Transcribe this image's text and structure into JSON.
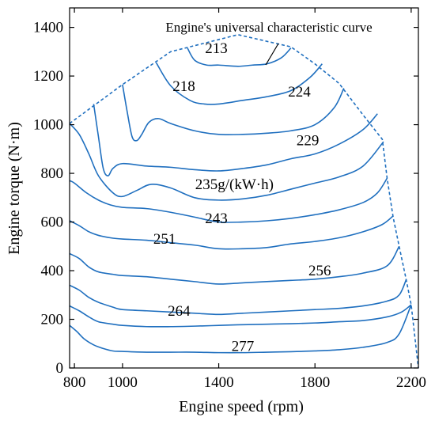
{
  "chart_data": {
    "type": "line",
    "title": "",
    "annotation": "Engine's universal characteristic curve",
    "xlabel": "Engine speed (rpm)",
    "ylabel": "Engine torque   (N·m)",
    "xlim": [
      780,
      2230
    ],
    "ylim": [
      0,
      1480
    ],
    "xticks": [
      800,
      1000,
      1400,
      1800,
      2200
    ],
    "yticks": [
      0,
      200,
      400,
      600,
      800,
      1000,
      1200,
      1400
    ],
    "grid": false,
    "legend": "none",
    "color": "#1f6fbf",
    "envelope": {
      "style": "dashed",
      "x": [
        780,
        1000,
        1200,
        1480,
        1700,
        1800,
        1900,
        2000,
        2080,
        2100,
        2125,
        2150,
        2180,
        2200,
        2230
      ],
      "y": [
        1005,
        1165,
        1300,
        1370,
        1320,
        1250,
        1170,
        1040,
        940,
        780,
        620,
        500,
        360,
        260,
        0
      ]
    },
    "series": [
      {
        "x": [
          1270,
          1300,
          1350,
          1400,
          1480,
          1540,
          1600,
          1660,
          1700
        ],
        "y": [
          1315,
          1265,
          1245,
          1245,
          1240,
          1245,
          1250,
          1275,
          1315
        ]
      },
      {
        "x": [
          1140,
          1200,
          1280,
          1340,
          1400,
          1500,
          1600,
          1700,
          1780,
          1830
        ],
        "y": [
          1255,
          1160,
          1100,
          1085,
          1085,
          1100,
          1115,
          1140,
          1195,
          1250
        ]
      },
      {
        "x": [
          1000,
          1020,
          1040,
          1060,
          1080,
          1110,
          1150,
          1200,
          1300,
          1400,
          1500,
          1600,
          1700,
          1800,
          1880,
          1920
        ],
        "y": [
          1165,
          1050,
          950,
          935,
          960,
          1010,
          1025,
          1005,
          975,
          960,
          960,
          965,
          975,
          1000,
          1070,
          1150
        ]
      },
      {
        "x": [
          880,
          900,
          920,
          940,
          960,
          1000,
          1100,
          1200,
          1300,
          1400,
          1500,
          1600,
          1700,
          1800,
          1900,
          2000,
          2060
        ],
        "y": [
          1085,
          950,
          820,
          790,
          820,
          840,
          830,
          825,
          815,
          810,
          820,
          835,
          860,
          880,
          920,
          980,
          1045
        ]
      },
      {
        "x": [
          780,
          820,
          860,
          900,
          960,
          1000,
          1060,
          1120,
          1200,
          1300,
          1400,
          1500,
          1600,
          1700,
          1800,
          1900,
          2000,
          2085
        ],
        "y": [
          1005,
          960,
          880,
          790,
          720,
          705,
          730,
          755,
          740,
          700,
          690,
          695,
          710,
          735,
          760,
          785,
          830,
          930
        ]
      },
      {
        "x": [
          780,
          800,
          850,
          900,
          950,
          1000,
          1100,
          1200,
          1300,
          1400,
          1500,
          1600,
          1700,
          1800,
          1900,
          2000,
          2060,
          2100
        ],
        "y": [
          770,
          760,
          720,
          690,
          670,
          660,
          655,
          640,
          620,
          600,
          600,
          605,
          615,
          630,
          650,
          680,
          720,
          780
        ]
      },
      {
        "x": [
          780,
          820,
          860,
          900,
          950,
          1000,
          1100,
          1200,
          1300,
          1400,
          1500,
          1600,
          1700,
          1800,
          1900,
          2000,
          2080,
          2125
        ],
        "y": [
          605,
          585,
          560,
          545,
          535,
          530,
          525,
          515,
          505,
          490,
          490,
          495,
          510,
          520,
          535,
          560,
          590,
          625
        ]
      },
      {
        "x": [
          780,
          820,
          860,
          900,
          960,
          1000,
          1100,
          1200,
          1300,
          1400,
          1500,
          1600,
          1700,
          1800,
          1900,
          2000,
          2100,
          2150
        ],
        "y": [
          470,
          450,
          415,
          395,
          385,
          380,
          375,
          365,
          355,
          345,
          350,
          355,
          360,
          365,
          375,
          390,
          420,
          500
        ]
      },
      {
        "x": [
          780,
          820,
          860,
          900,
          960,
          1000,
          1100,
          1200,
          1300,
          1400,
          1500,
          1600,
          1700,
          1800,
          1900,
          2000,
          2100,
          2150,
          2180
        ],
        "y": [
          340,
          320,
          290,
          270,
          250,
          240,
          235,
          230,
          225,
          220,
          225,
          230,
          235,
          240,
          245,
          255,
          275,
          300,
          365
        ]
      },
      {
        "x": [
          780,
          820,
          860,
          900,
          960,
          1000,
          1100,
          1200,
          1300,
          1400,
          1500,
          1600,
          1700,
          1800,
          1900,
          2000,
          2100,
          2160,
          2200
        ],
        "y": [
          255,
          235,
          210,
          190,
          180,
          175,
          170,
          170,
          172,
          175,
          178,
          180,
          182,
          185,
          190,
          195,
          210,
          230,
          260
        ]
      },
      {
        "x": [
          780,
          810,
          840,
          880,
          920,
          960,
          1000,
          1100,
          1200,
          1300,
          1400,
          1500,
          1600,
          1700,
          1800,
          1900,
          2000,
          2100,
          2150,
          2200
        ],
        "y": [
          175,
          150,
          120,
          95,
          80,
          70,
          68,
          65,
          65,
          65,
          63,
          63,
          65,
          67,
          70,
          75,
          85,
          105,
          140,
          260
        ]
      }
    ],
    "labels": [
      {
        "text": "213",
        "x": 1390,
        "y": 1295
      },
      {
        "text": "218",
        "x": 1255,
        "y": 1138
      },
      {
        "text": "224",
        "x": 1735,
        "y": 1115
      },
      {
        "text": "229",
        "x": 1770,
        "y": 915
      },
      {
        "text": "235g/(kW·h)",
        "x": 1465,
        "y": 735
      },
      {
        "text": "243",
        "x": 1390,
        "y": 595
      },
      {
        "text": "251",
        "x": 1175,
        "y": 510
      },
      {
        "text": "256",
        "x": 1820,
        "y": 380
      },
      {
        "text": "264",
        "x": 1235,
        "y": 215
      },
      {
        "text": "277",
        "x": 1500,
        "y": 70
      }
    ]
  }
}
